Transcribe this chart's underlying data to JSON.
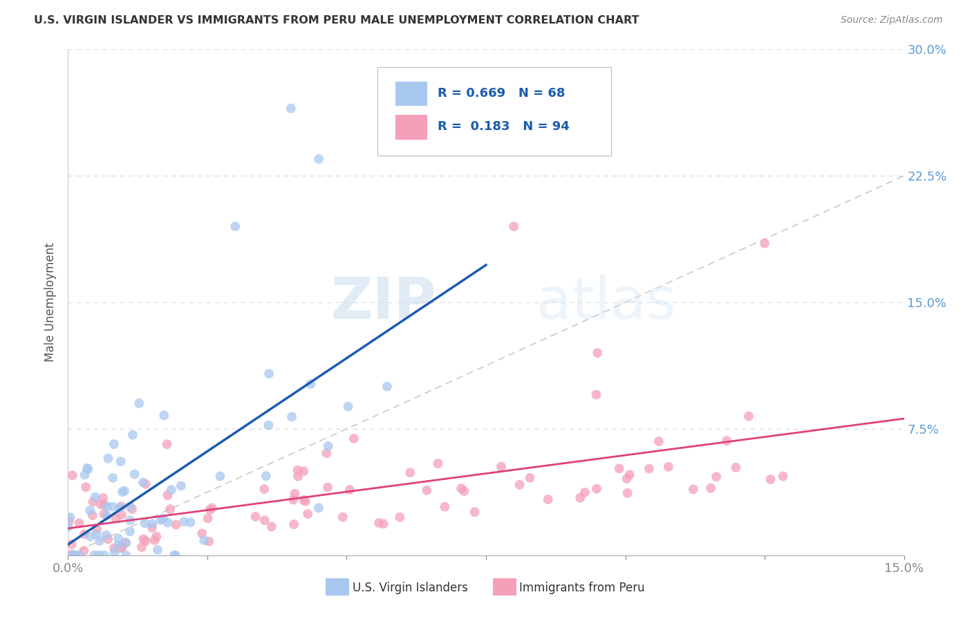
{
  "title": "U.S. VIRGIN ISLANDER VS IMMIGRANTS FROM PERU MALE UNEMPLOYMENT CORRELATION CHART",
  "source": "Source: ZipAtlas.com",
  "ylabel": "Male Unemployment",
  "xlim": [
    0.0,
    0.15
  ],
  "ylim": [
    0.0,
    0.3
  ],
  "xticks": [
    0.0,
    0.025,
    0.05,
    0.075,
    0.1,
    0.125,
    0.15
  ],
  "xticklabels": [
    "0.0%",
    "",
    "",
    "",
    "",
    "",
    "15.0%"
  ],
  "yticks": [
    0.0,
    0.075,
    0.15,
    0.225,
    0.3
  ],
  "yticklabels": [
    "",
    "7.5%",
    "15.0%",
    "22.5%",
    "30.0%"
  ],
  "blue_R": 0.669,
  "blue_N": 68,
  "pink_R": 0.183,
  "pink_N": 94,
  "blue_color": "#A8C8F0",
  "pink_color": "#F4A0B8",
  "blue_line_color": "#1A5CB0",
  "pink_line_color": "#E0407A",
  "ref_line_color": "#C8C8C8",
  "legend_label_blue": "U.S. Virgin Islanders",
  "legend_label_pink": "Immigrants from Peru",
  "watermark_zip": "ZIP",
  "watermark_atlas": "atlas",
  "background_color": "#FFFFFF",
  "grid_color": "#DDDDDD",
  "title_color": "#333333",
  "source_color": "#888888",
  "ylabel_color": "#555555",
  "tick_color_x": "#888888",
  "tick_color_y": "#5B9BD5"
}
